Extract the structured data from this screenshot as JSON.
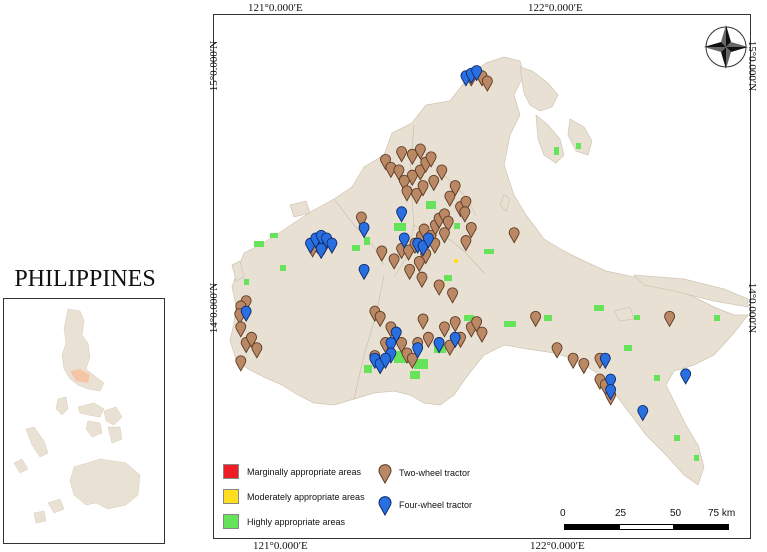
{
  "inset": {
    "title": "PHILIPPINES",
    "country_color": "#e9e1d3",
    "highlight_color": "#f5c6a5"
  },
  "map": {
    "land_color": "#e8e0d2",
    "land_border": "#cfc5b3",
    "grid_labels": {
      "top_left": "121°0.000′E",
      "top_right": "122°0.000′E",
      "bottom_left": "121°0.000′E",
      "bottom_right": "122°0.000′E",
      "left_upper": "15°0.000′N",
      "left_lower": "14°0.000′N",
      "right_upper": "15°0.000′N",
      "right_lower": "14°0.000′N"
    }
  },
  "legend": {
    "areas": [
      {
        "label": "Marginally appropriate areas",
        "color": "#ee1c25"
      },
      {
        "label": "Moderately appropriate areas",
        "color": "#ffdd21"
      },
      {
        "label": "Highly appropriate areas",
        "color": "#66e35a"
      }
    ],
    "markers": [
      {
        "label": "Two-wheel tractor",
        "color": "#bb8866"
      },
      {
        "label": "Four-wheel tractor",
        "color": "#2a6fe0"
      }
    ]
  },
  "scale_bar": {
    "labels": [
      "0",
      "25",
      "50",
      "75 km"
    ]
  },
  "marker_points": {
    "two_wheel": [
      [
        0.193,
        0.44
      ],
      [
        0.205,
        0.442
      ],
      [
        0.184,
        0.447
      ],
      [
        0.275,
        0.39
      ],
      [
        0.313,
        0.455
      ],
      [
        0.336,
        0.47
      ],
      [
        0.35,
        0.45
      ],
      [
        0.363,
        0.453
      ],
      [
        0.375,
        0.44
      ],
      [
        0.387,
        0.426
      ],
      [
        0.392,
        0.413
      ],
      [
        0.405,
        0.425
      ],
      [
        0.413,
        0.405
      ],
      [
        0.42,
        0.392
      ],
      [
        0.43,
        0.384
      ],
      [
        0.437,
        0.398
      ],
      [
        0.43,
        0.42
      ],
      [
        0.412,
        0.44
      ],
      [
        0.395,
        0.46
      ],
      [
        0.383,
        0.475
      ],
      [
        0.365,
        0.49
      ],
      [
        0.388,
        0.505
      ],
      [
        0.42,
        0.52
      ],
      [
        0.445,
        0.535
      ],
      [
        0.37,
        0.31
      ],
      [
        0.385,
        0.3
      ],
      [
        0.395,
        0.285
      ],
      [
        0.405,
        0.275
      ],
      [
        0.37,
        0.27
      ],
      [
        0.35,
        0.265
      ],
      [
        0.385,
        0.26
      ],
      [
        0.32,
        0.28
      ],
      [
        0.33,
        0.295
      ],
      [
        0.345,
        0.3
      ],
      [
        0.355,
        0.32
      ],
      [
        0.36,
        0.34
      ],
      [
        0.378,
        0.345
      ],
      [
        0.39,
        0.33
      ],
      [
        0.41,
        0.32
      ],
      [
        0.425,
        0.3
      ],
      [
        0.45,
        0.33
      ],
      [
        0.44,
        0.35
      ],
      [
        0.46,
        0.37
      ],
      [
        0.47,
        0.36
      ],
      [
        0.468,
        0.38
      ],
      [
        0.48,
        0.41
      ],
      [
        0.47,
        0.435
      ],
      [
        0.06,
        0.55
      ],
      [
        0.05,
        0.56
      ],
      [
        0.048,
        0.575
      ],
      [
        0.05,
        0.6
      ],
      [
        0.06,
        0.63
      ],
      [
        0.07,
        0.62
      ],
      [
        0.08,
        0.64
      ],
      [
        0.05,
        0.665
      ],
      [
        0.3,
        0.57
      ],
      [
        0.31,
        0.58
      ],
      [
        0.33,
        0.6
      ],
      [
        0.34,
        0.61
      ],
      [
        0.35,
        0.63
      ],
      [
        0.36,
        0.65
      ],
      [
        0.37,
        0.66
      ],
      [
        0.32,
        0.63
      ],
      [
        0.3,
        0.655
      ],
      [
        0.31,
        0.67
      ],
      [
        0.38,
        0.63
      ],
      [
        0.4,
        0.62
      ],
      [
        0.42,
        0.63
      ],
      [
        0.44,
        0.635
      ],
      [
        0.46,
        0.62
      ],
      [
        0.48,
        0.6
      ],
      [
        0.49,
        0.59
      ],
      [
        0.5,
        0.61
      ],
      [
        0.45,
        0.59
      ],
      [
        0.43,
        0.6
      ],
      [
        0.39,
        0.585
      ],
      [
        0.48,
        0.12
      ],
      [
        0.5,
        0.12
      ],
      [
        0.51,
        0.13
      ],
      [
        0.6,
        0.58
      ],
      [
        0.64,
        0.64
      ],
      [
        0.67,
        0.66
      ],
      [
        0.69,
        0.67
      ],
      [
        0.72,
        0.66
      ],
      [
        0.72,
        0.7
      ],
      [
        0.73,
        0.71
      ],
      [
        0.74,
        0.73
      ],
      [
        0.85,
        0.58
      ],
      [
        0.56,
        0.42
      ]
    ],
    "four_wheel": [
      [
        0.18,
        0.44
      ],
      [
        0.19,
        0.43
      ],
      [
        0.2,
        0.425
      ],
      [
        0.21,
        0.43
      ],
      [
        0.22,
        0.44
      ],
      [
        0.2,
        0.45
      ],
      [
        0.28,
        0.41
      ],
      [
        0.28,
        0.49
      ],
      [
        0.35,
        0.38
      ],
      [
        0.355,
        0.43
      ],
      [
        0.38,
        0.44
      ],
      [
        0.39,
        0.445
      ],
      [
        0.4,
        0.43
      ],
      [
        0.06,
        0.57
      ],
      [
        0.34,
        0.61
      ],
      [
        0.33,
        0.63
      ],
      [
        0.3,
        0.66
      ],
      [
        0.31,
        0.67
      ],
      [
        0.33,
        0.65
      ],
      [
        0.38,
        0.64
      ],
      [
        0.45,
        0.62
      ],
      [
        0.42,
        0.63
      ],
      [
        0.47,
        0.12
      ],
      [
        0.48,
        0.115
      ],
      [
        0.49,
        0.11
      ],
      [
        0.73,
        0.66
      ],
      [
        0.74,
        0.7
      ],
      [
        0.74,
        0.72
      ],
      [
        0.8,
        0.76
      ],
      [
        0.88,
        0.69
      ],
      [
        0.32,
        0.66
      ]
    ]
  }
}
